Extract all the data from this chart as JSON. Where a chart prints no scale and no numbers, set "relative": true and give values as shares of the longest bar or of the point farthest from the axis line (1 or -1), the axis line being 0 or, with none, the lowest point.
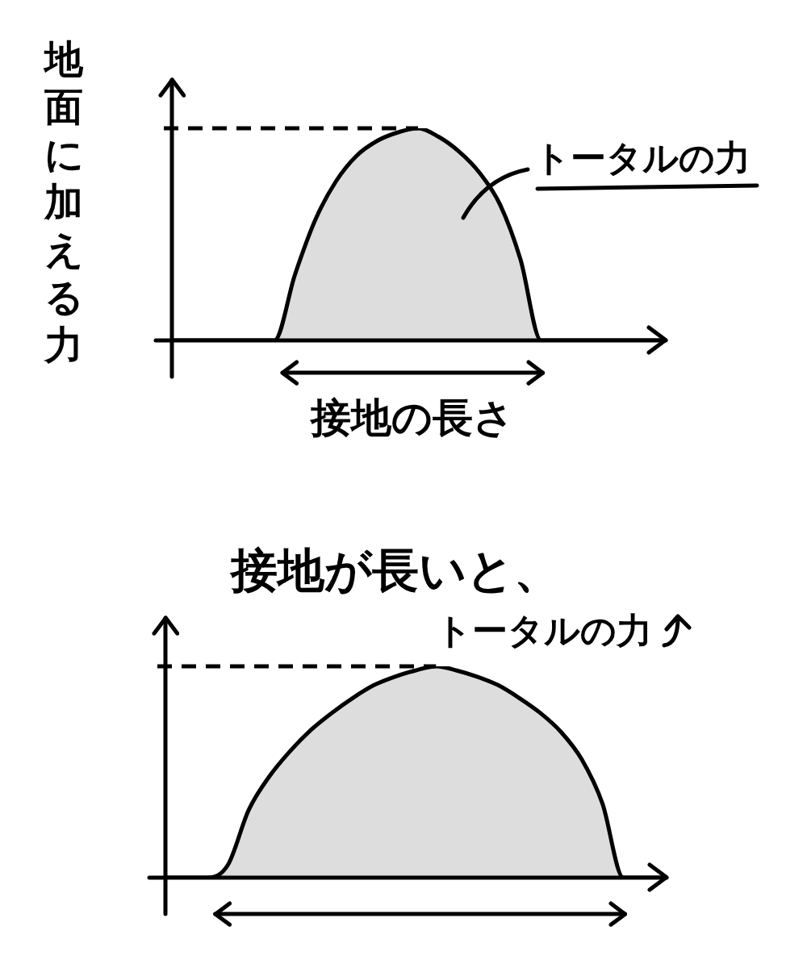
{
  "chart_data": [
    {
      "type": "area",
      "relative": true,
      "ylabel": "地面に加える力",
      "xlabel": "接地の長さ",
      "annotations": [
        "トータルの力"
      ],
      "categories": [
        null,
        null,
        null,
        null,
        null,
        null,
        null,
        null,
        null,
        null,
        null,
        null,
        null,
        null,
        null,
        null,
        null,
        null,
        null,
        null,
        null,
        null,
        null,
        null,
        null
      ],
      "values": [
        0,
        0,
        0,
        0,
        0,
        0,
        0.31,
        0.57,
        0.75,
        0.87,
        0.94,
        0.98,
        1.0,
        0.96,
        0.89,
        0.79,
        0.64,
        0.38,
        0,
        0,
        0,
        0,
        0,
        0,
        0
      ],
      "color": "#000000",
      "marker": "none",
      "legend": false,
      "grid": false,
      "tick_labels": false,
      "ref_lines": [
        {
          "axis": "y",
          "value": 1,
          "line_style": "dashed",
          "color": "#000000"
        }
      ]
    },
    {
      "type": "area",
      "relative": true,
      "title": "接地が長いと、",
      "annotations": [
        "トータルの力"
      ],
      "categories": [
        null,
        null,
        null,
        null,
        null,
        null,
        null,
        null,
        null,
        null,
        null,
        null,
        null,
        null,
        null,
        null,
        null,
        null,
        null,
        null,
        null,
        null,
        null,
        null,
        null
      ],
      "values": [
        0,
        0,
        0,
        0.06,
        0.32,
        0.48,
        0.6,
        0.7,
        0.78,
        0.85,
        0.91,
        0.95,
        0.98,
        1,
        0.98,
        0.95,
        0.91,
        0.85,
        0.78,
        0.69,
        0.56,
        0.35,
        0,
        0,
        0
      ],
      "color": "#000000",
      "marker": "none",
      "legend": false,
      "grid": false,
      "tick_labels": false,
      "ref_lines": [
        {
          "axis": "y",
          "value": 1,
          "line_style": "dashed",
          "color": "#000000"
        }
      ]
    }
  ]
}
